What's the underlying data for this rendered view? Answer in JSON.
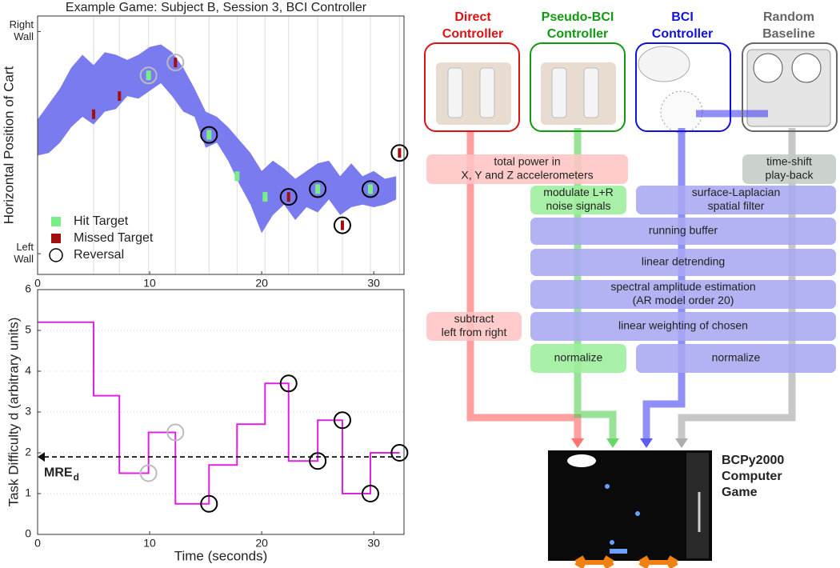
{
  "chart_data": [
    {
      "type": "band",
      "title": "Example Game:  Subject B, Session 3, BCI Controller",
      "ylabel": "Horizontal Position of Cart",
      "xlim": [
        0,
        32.7
      ],
      "xticks": [
        0,
        10,
        20,
        30
      ],
      "ylim": [
        0,
        1
      ],
      "yticks": [
        {
          "value": 0.08,
          "label": "Left Wall"
        },
        {
          "value": 0.94,
          "label": "Right Wall"
        }
      ],
      "band": {
        "color": "#7b7bf0",
        "x": [
          0,
          1,
          2,
          3,
          4,
          5,
          6,
          7,
          8,
          9,
          10,
          11,
          12,
          13,
          14,
          15,
          16,
          17,
          18,
          19,
          20,
          21,
          22,
          23,
          24,
          25,
          26,
          27,
          28,
          29,
          30,
          31,
          32
        ],
        "upper": [
          0.6,
          0.66,
          0.72,
          0.8,
          0.85,
          0.81,
          0.86,
          0.85,
          0.83,
          0.85,
          0.88,
          0.89,
          0.86,
          0.8,
          0.72,
          0.63,
          0.61,
          0.57,
          0.52,
          0.47,
          0.4,
          0.44,
          0.41,
          0.37,
          0.4,
          0.43,
          0.44,
          0.38,
          0.43,
          0.38,
          0.4,
          0.37,
          0.38
        ],
        "lower": [
          0.46,
          0.47,
          0.51,
          0.57,
          0.61,
          0.58,
          0.63,
          0.64,
          0.69,
          0.68,
          0.71,
          0.74,
          0.69,
          0.63,
          0.61,
          0.49,
          0.51,
          0.44,
          0.35,
          0.27,
          0.16,
          0.23,
          0.27,
          0.21,
          0.26,
          0.24,
          0.29,
          0.23,
          0.26,
          0.27,
          0.26,
          0.27,
          0.29
        ]
      },
      "series": [
        {
          "name": "Hit Target",
          "color": "#77ee88",
          "marker": "rect",
          "x": [
            9.9,
            15.3,
            17.8,
            20.3,
            25,
            29.7
          ],
          "values": [
            0.77,
            0.54,
            0.38,
            0.3,
            0.33,
            0.33
          ]
        },
        {
          "name": "Missed Target",
          "color": "#a01010",
          "marker": "rect",
          "x": [
            5,
            7.3,
            12.3,
            22.4,
            27.2,
            32.3
          ],
          "values": [
            0.62,
            0.69,
            0.82,
            0.3,
            0.19,
            0.47
          ]
        },
        {
          "name": "Reversal",
          "color": "#000000",
          "marker": "circle",
          "marker_colors": [
            "#bbbbbb",
            "#bbbbbb",
            "#000000",
            "#000000",
            "#000000",
            "#000000",
            "#000000",
            "#000000"
          ],
          "x": [
            9.9,
            12.3,
            15.3,
            22.4,
            25,
            27.2,
            29.7,
            32.3
          ],
          "values": [
            0.77,
            0.82,
            0.54,
            0.3,
            0.33,
            0.19,
            0.33,
            0.47
          ]
        }
      ],
      "legend": "lower left"
    },
    {
      "type": "line",
      "xlabel": "Time (seconds)",
      "ylabel": "Task Difficulty d (arbitrary units)",
      "xlim": [
        0,
        32.7
      ],
      "xticks": [
        0,
        10,
        20,
        30
      ],
      "ylim": [
        0,
        6
      ],
      "yticks": [
        0,
        1,
        2,
        3,
        4,
        5,
        6
      ],
      "grid": true,
      "series": [
        {
          "color": "#e020e0",
          "marker": "none",
          "x": [
            0,
            5,
            5,
            7.3,
            7.3,
            9.9,
            9.9,
            12.3,
            12.3,
            15.3,
            15.3,
            17.8,
            17.8,
            20.3,
            20.3,
            22.4,
            22.4,
            25,
            25,
            27.2,
            27.2,
            29.7,
            29.7,
            32.3
          ],
          "values": [
            5.2,
            5.2,
            3.4,
            3.4,
            1.5,
            1.5,
            2.5,
            2.5,
            0.75,
            0.75,
            1.7,
            1.7,
            2.7,
            2.7,
            3.7,
            3.7,
            1.8,
            1.8,
            2.8,
            2.8,
            1.0,
            1.0,
            2.0,
            2.0
          ]
        },
        {
          "color": "#000000",
          "marker": "circle",
          "marker_colors": [
            "#bbbbbb",
            "#bbbbbb",
            "#000000",
            "#000000",
            "#000000",
            "#000000",
            "#000000",
            "#000000"
          ],
          "x": [
            9.9,
            12.3,
            15.3,
            22.4,
            25,
            27.2,
            29.7,
            32.3
          ],
          "values": [
            1.5,
            2.5,
            0.75,
            3.7,
            1.8,
            2.8,
            1.0,
            2.0
          ]
        }
      ],
      "annotations": [
        {
          "text": "MRE",
          "subscript": "d",
          "value": 1.9
        }
      ]
    }
  ],
  "diagram": {
    "controllers": [
      {
        "lines": [
          "Direct",
          "Controller"
        ],
        "color": "#dd1111"
      },
      {
        "lines": [
          "Pseudo-BCI",
          "Controller"
        ],
        "color": "#119911"
      },
      {
        "lines": [
          "BCI",
          "Controller"
        ],
        "color": "#1111dd"
      },
      {
        "lines": [
          "Random",
          "Baseline"
        ],
        "color": "#666666"
      }
    ],
    "steps": [
      {
        "lines": [
          "total power in",
          "X, Y and Z accelerometers"
        ],
        "color": "#ffc4c4"
      },
      {
        "lines": [
          "time-shift",
          "play-back"
        ],
        "color": "#c4ccc4"
      },
      {
        "lines": [
          "modulate L+R",
          "noise signals"
        ],
        "color": "#9cee9c"
      },
      {
        "lines": [
          "surface-Laplacian",
          "spatial filter"
        ],
        "color": "#a8a8f2"
      },
      {
        "lines": [
          "running buffer"
        ],
        "color": "#a8a8f2"
      },
      {
        "lines": [
          "linear detrending"
        ],
        "color": "#a8a8f2"
      },
      {
        "lines": [
          "spectral amplitude estimation",
          "(AR model order 20)"
        ],
        "color": "#a8a8f2"
      },
      {
        "lines": [
          "subtract",
          "left from right"
        ],
        "color": "#ffc4c4"
      },
      {
        "lines": [
          "linear weighting of chosen"
        ],
        "color": "#a8a8f2"
      },
      {
        "lines": [
          "normalize"
        ],
        "color": "#9cee9c"
      },
      {
        "lines": [
          "normalize"
        ],
        "color": "#a8a8f2"
      }
    ],
    "game": {
      "lines": [
        "BCPy2000",
        "Computer",
        "Game"
      ]
    }
  }
}
